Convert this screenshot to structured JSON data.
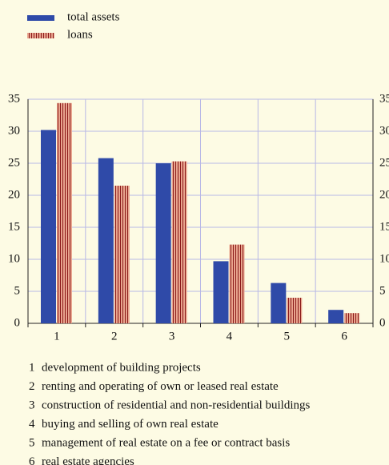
{
  "chart_data": {
    "type": "bar",
    "categories": [
      "1",
      "2",
      "3",
      "4",
      "5",
      "6"
    ],
    "series": [
      {
        "name": "total assets",
        "color": "#2f4aa8",
        "values": [
          30.2,
          25.8,
          25.0,
          9.7,
          6.3,
          2.1
        ]
      },
      {
        "name": "loans",
        "color": "#e8a58e",
        "values": [
          34.4,
          21.5,
          25.3,
          12.3,
          4.0,
          1.6
        ]
      }
    ],
    "ylim": [
      0,
      35
    ],
    "yticks": [
      0,
      5,
      10,
      15,
      20,
      25,
      30,
      35
    ],
    "y2lim": [
      0,
      35
    ],
    "y2ticks": [
      0,
      5,
      10,
      15,
      20,
      25,
      30,
      35
    ],
    "grid": true,
    "legend": "top-left",
    "notes": [
      "development of building projects",
      "renting and operating of own or leased real estate",
      "construction of residential and non-residential buildings",
      "buying and selling of own real estate",
      "management of real estate on a fee or contract basis",
      "real estate agencies"
    ]
  }
}
